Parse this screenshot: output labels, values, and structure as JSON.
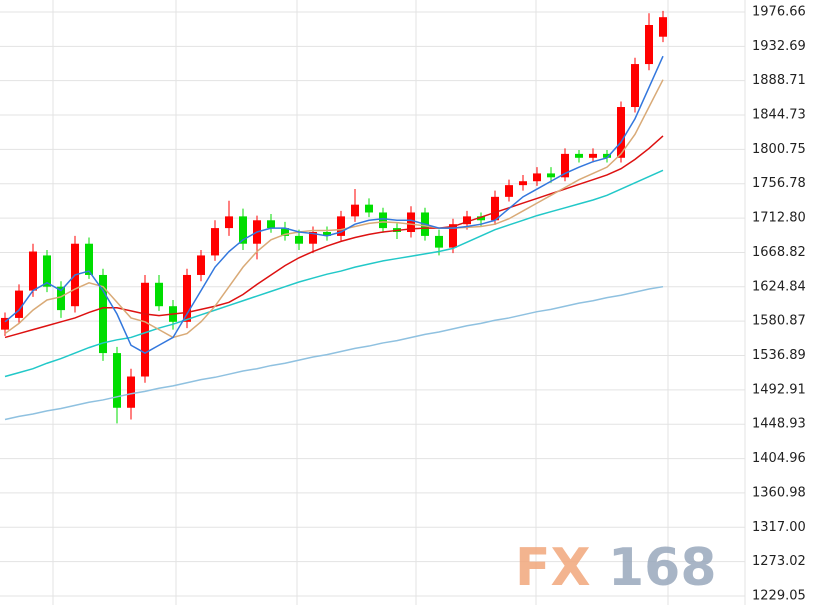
{
  "chart_data": {
    "type": "candlestick",
    "ylim": [
      1217.5,
      1992.0
    ],
    "yticks": [
      1976.66,
      1932.69,
      1888.71,
      1844.73,
      1800.75,
      1756.78,
      {
        "value": 1712.8,
        "label": "1712.80"
      },
      1668.82,
      1624.84,
      1580.87,
      1536.89,
      1492.91,
      1448.93,
      1404.96,
      1360.98,
      {
        "value": 1317,
        "label": "1317.00"
      },
      1273.02,
      1229.05
    ],
    "grid": true,
    "up_color": "#ff0000",
    "down_color": "#00dd00",
    "open": [
      1570,
      1585,
      1620,
      1665,
      1625,
      1600,
      1680,
      1640,
      1540,
      1470,
      1510,
      1630,
      1600,
      1580,
      1640,
      1665,
      1700,
      1715,
      1680,
      1710,
      1700,
      1690,
      1680,
      1695,
      1690,
      1715,
      1730,
      1720,
      1700,
      1695,
      1720,
      1690,
      1675,
      1705,
      1715,
      1710,
      1740,
      1755,
      1760,
      1770,
      1765,
      1795,
      1790,
      1795,
      1790,
      1855,
      1910,
      1945
    ],
    "high": [
      1592,
      1628,
      1680,
      1672,
      1632,
      1690,
      1688,
      1648,
      1548,
      1520,
      1640,
      1640,
      1608,
      1648,
      1672,
      1710,
      1735,
      1725,
      1716,
      1718,
      1708,
      1698,
      1702,
      1702,
      1722,
      1750,
      1738,
      1726,
      1706,
      1728,
      1726,
      1698,
      1712,
      1722,
      1720,
      1748,
      1762,
      1768,
      1778,
      1778,
      1802,
      1800,
      1802,
      1800,
      1862,
      1918,
      1975,
      1978
    ],
    "low": [
      1562,
      1578,
      1612,
      1618,
      1585,
      1592,
      1635,
      1530,
      1450,
      1455,
      1502,
      1594,
      1570,
      1572,
      1632,
      1658,
      1690,
      1672,
      1660,
      1694,
      1684,
      1672,
      1668,
      1684,
      1684,
      1708,
      1714,
      1694,
      1686,
      1688,
      1684,
      1665,
      1668,
      1698,
      1702,
      1704,
      1734,
      1748,
      1754,
      1758,
      1760,
      1784,
      1784,
      1784,
      1784,
      1848,
      1902,
      1938
    ],
    "close": [
      1585,
      1620,
      1670,
      1625,
      1595,
      1680,
      1640,
      1540,
      1470,
      1510,
      1630,
      1600,
      1580,
      1640,
      1665,
      1700,
      1715,
      1680,
      1710,
      1700,
      1690,
      1680,
      1695,
      1690,
      1715,
      1730,
      1720,
      1700,
      1695,
      1720,
      1690,
      1675,
      1705,
      1715,
      1710,
      1740,
      1755,
      1760,
      1770,
      1765,
      1795,
      1790,
      1795,
      1790,
      1855,
      1910,
      1960,
      1970
    ],
    "lines": [
      {
        "color": "#8fc1e0",
        "values": [
          1455,
          1459,
          1462,
          1466,
          1469,
          1473,
          1477,
          1480,
          1484,
          1488,
          1491,
          1495,
          1498,
          1502,
          1506,
          1509,
          1513,
          1517,
          1520,
          1524,
          1527,
          1531,
          1535,
          1538,
          1542,
          1546,
          1549,
          1553,
          1556,
          1560,
          1564,
          1567,
          1571,
          1575,
          1578,
          1582,
          1585,
          1589,
          1593,
          1596,
          1600,
          1604,
          1607,
          1611,
          1614,
          1618,
          1622,
          1625
        ]
      },
      {
        "color": "#22c8c8",
        "values": [
          1510,
          1515,
          1520,
          1527,
          1533,
          1540,
          1547,
          1553,
          1557,
          1560,
          1566,
          1572,
          1577,
          1583,
          1589,
          1595,
          1601,
          1607,
          1613,
          1619,
          1625,
          1631,
          1636,
          1641,
          1645,
          1650,
          1654,
          1658,
          1661,
          1664,
          1667,
          1670,
          1674,
          1682,
          1690,
          1698,
          1704,
          1710,
          1716,
          1721,
          1726,
          1731,
          1736,
          1742,
          1750,
          1758,
          1766,
          1774
        ]
      },
      {
        "color": "#dd1111",
        "values": [
          1560,
          1565,
          1570,
          1575,
          1580,
          1585,
          1592,
          1598,
          1598,
          1594,
          1590,
          1588,
          1590,
          1592,
          1596,
          1600,
          1605,
          1615,
          1628,
          1640,
          1652,
          1662,
          1670,
          1677,
          1683,
          1688,
          1692,
          1695,
          1697,
          1699,
          1700,
          1700,
          1702,
          1708,
          1714,
          1720,
          1726,
          1732,
          1738,
          1744,
          1750,
          1756,
          1762,
          1768,
          1776,
          1788,
          1802,
          1818
        ]
      },
      {
        "color": "#d9aa77",
        "values": [
          1565,
          1578,
          1595,
          1608,
          1612,
          1622,
          1630,
          1625,
          1605,
          1585,
          1580,
          1570,
          1560,
          1565,
          1580,
          1600,
          1625,
          1650,
          1670,
          1685,
          1692,
          1695,
          1697,
          1697,
          1698,
          1702,
          1706,
          1708,
          1707,
          1705,
          1703,
          1700,
          1700,
          1701,
          1702,
          1705,
          1712,
          1722,
          1732,
          1742,
          1752,
          1762,
          1770,
          1778,
          1795,
          1820,
          1855,
          1890
        ]
      },
      {
        "color": "#3377dd",
        "values": [
          1580,
          1595,
          1620,
          1630,
          1620,
          1640,
          1645,
          1620,
          1590,
          1550,
          1540,
          1550,
          1560,
          1590,
          1620,
          1650,
          1670,
          1685,
          1695,
          1700,
          1700,
          1695,
          1693,
          1690,
          1695,
          1705,
          1710,
          1712,
          1710,
          1710,
          1705,
          1700,
          1700,
          1702,
          1705,
          1710,
          1725,
          1740,
          1750,
          1760,
          1770,
          1778,
          1785,
          1790,
          1810,
          1840,
          1880,
          1920
        ]
      }
    ],
    "watermark": [
      "FX",
      "168"
    ]
  }
}
